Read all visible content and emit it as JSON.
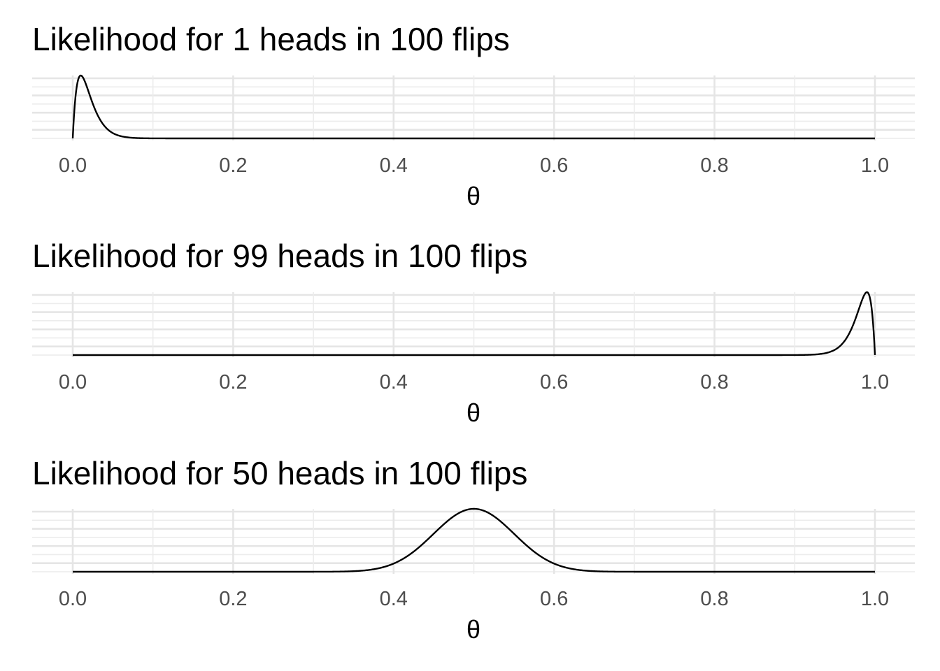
{
  "chart_data": [
    {
      "type": "line",
      "title": "Likelihood for 1 heads in 100 flips",
      "xlabel": "θ",
      "ylabel": "",
      "xlim": [
        0,
        1
      ],
      "x_ticks": [
        "0.0",
        "0.2",
        "0.4",
        "0.6",
        "0.8",
        "1.0"
      ],
      "heads": 1,
      "flips": 100,
      "mode": 0.01,
      "x": [
        0,
        0.005,
        0.01,
        0.015,
        0.02,
        0.03,
        0.04,
        0.05,
        0.06,
        0.07,
        0.08,
        0.1,
        0.2,
        0.4,
        0.6,
        0.8,
        1.0
      ],
      "y": [
        0,
        0.81,
        1.0,
        0.92,
        0.75,
        0.41,
        0.19,
        0.079,
        0.03,
        0.011,
        0.0037,
        0.0004,
        0,
        0,
        0,
        0,
        0
      ],
      "grid": true
    },
    {
      "type": "line",
      "title": "Likelihood for 99 heads in 100 flips",
      "xlabel": "θ",
      "ylabel": "",
      "xlim": [
        0,
        1
      ],
      "x_ticks": [
        "0.0",
        "0.2",
        "0.4",
        "0.6",
        "0.8",
        "1.0"
      ],
      "heads": 99,
      "flips": 100,
      "mode": 0.99,
      "x": [
        0,
        0.2,
        0.4,
        0.6,
        0.8,
        0.9,
        0.92,
        0.93,
        0.94,
        0.95,
        0.96,
        0.97,
        0.98,
        0.985,
        0.99,
        0.995,
        1.0
      ],
      "y": [
        0,
        0,
        0,
        0,
        0,
        0.0004,
        0.0037,
        0.011,
        0.03,
        0.079,
        0.19,
        0.41,
        0.75,
        0.92,
        1.0,
        0.81,
        0
      ],
      "grid": true
    },
    {
      "type": "line",
      "title": "Likelihood for 50 heads in 100 flips",
      "xlabel": "θ",
      "ylabel": "",
      "xlim": [
        0,
        1
      ],
      "x_ticks": [
        "0.0",
        "0.2",
        "0.4",
        "0.6",
        "0.8",
        "1.0"
      ],
      "heads": 50,
      "flips": 100,
      "mode": 0.5,
      "x": [
        0,
        0.2,
        0.3,
        0.35,
        0.4,
        0.45,
        0.5,
        0.55,
        0.6,
        0.65,
        0.7,
        0.8,
        1.0
      ],
      "y": [
        0,
        0,
        0.0003,
        0.011,
        0.13,
        0.61,
        1.0,
        0.61,
        0.13,
        0.011,
        0.0003,
        0,
        0
      ],
      "grid": true
    }
  ],
  "colors": {
    "curve": "#000000",
    "grid": "#e5e5e5",
    "tick_text": "#4d4d4d",
    "background": "#ffffff"
  }
}
